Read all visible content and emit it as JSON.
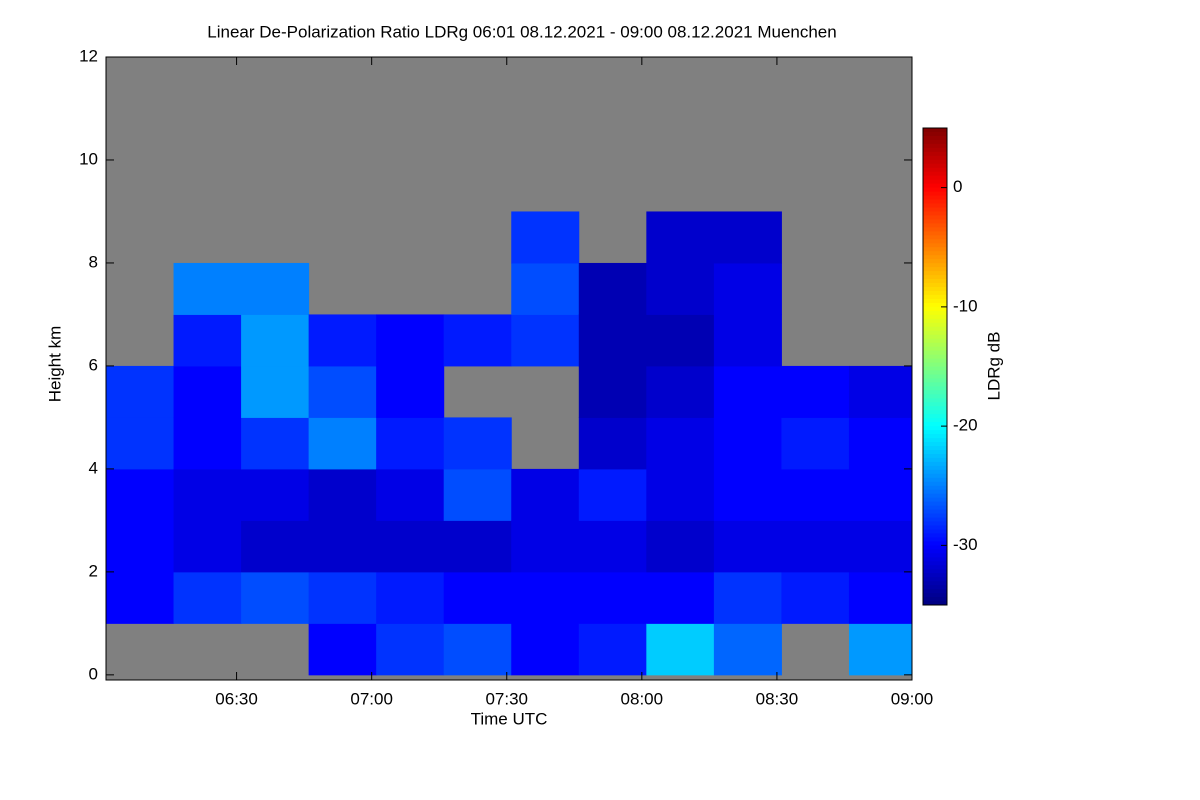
{
  "chart_data": {
    "type": "heatmap",
    "title": "Linear De-Polarization Ratio LDRg   06:01 08.12.2021 - 09:00 08.12.2021 Muenchen",
    "x_label": "Time UTC",
    "y_label": "Height km",
    "colorbar_label": "LDRg dB",
    "x": [
      361,
      376,
      391,
      406,
      421,
      436,
      451,
      466,
      481,
      496,
      511,
      526,
      540
    ],
    "y": [
      0,
      1,
      2,
      3,
      4,
      5,
      6,
      7,
      8,
      9,
      10,
      11,
      12
    ],
    "z": [
      [
        null,
        -30,
        -30,
        -30,
        -28,
        -28,
        null,
        null,
        null,
        null,
        null,
        null
      ],
      [
        null,
        -28,
        -31,
        -31,
        -30,
        -30,
        -29,
        -25,
        null,
        null,
        null,
        null
      ],
      [
        null,
        -27,
        -32,
        -31,
        -28,
        -24,
        -24,
        -25,
        null,
        null,
        null,
        null
      ],
      [
        -30,
        -28,
        -32,
        -32,
        -25,
        -27,
        -29,
        null,
        null,
        null,
        null,
        null
      ],
      [
        -28,
        -29,
        -32,
        -31,
        -29,
        -30,
        -30,
        null,
        null,
        null,
        null,
        null
      ],
      [
        -27,
        -30,
        -32,
        -27,
        -28,
        null,
        -29,
        null,
        null,
        null,
        null,
        null
      ],
      [
        -30,
        -30,
        -31,
        -31,
        null,
        null,
        -28,
        -27,
        -28,
        null,
        null,
        null
      ],
      [
        -29,
        -30,
        -31,
        -29,
        -32,
        -33,
        -33,
        -33,
        null,
        null,
        null,
        null
      ],
      [
        -22,
        -30,
        -32,
        -31,
        -31,
        -32,
        -33,
        -32,
        -32,
        null,
        null,
        null
      ],
      [
        -26,
        -28,
        -31,
        -30,
        -30,
        -30,
        -31,
        -31,
        -32,
        null,
        null,
        null
      ],
      [
        null,
        -29,
        -31,
        -30,
        -29,
        -30,
        null,
        null,
        null,
        null,
        null,
        null
      ],
      [
        -24,
        -30,
        -31,
        -30,
        -30,
        -31,
        null,
        null,
        null,
        null,
        null,
        null
      ]
    ],
    "xlim": [
      361,
      540
    ],
    "xticks": [
      {
        "value": 390,
        "label": "06:30"
      },
      {
        "value": 420,
        "label": "07:00"
      },
      {
        "value": 450,
        "label": "07:30"
      },
      {
        "value": 480,
        "label": "08:00"
      },
      {
        "value": 510,
        "label": "08:30"
      },
      {
        "value": 540,
        "label": "09:00"
      }
    ],
    "ylim": [
      -0.1,
      12
    ],
    "yticks": [
      0,
      2,
      4,
      6,
      8,
      10,
      12
    ],
    "zlim": [
      -35,
      5
    ],
    "zticks": [
      0,
      -10,
      -20,
      -30
    ],
    "colormap": "jet",
    "missing_color": "#808080"
  }
}
